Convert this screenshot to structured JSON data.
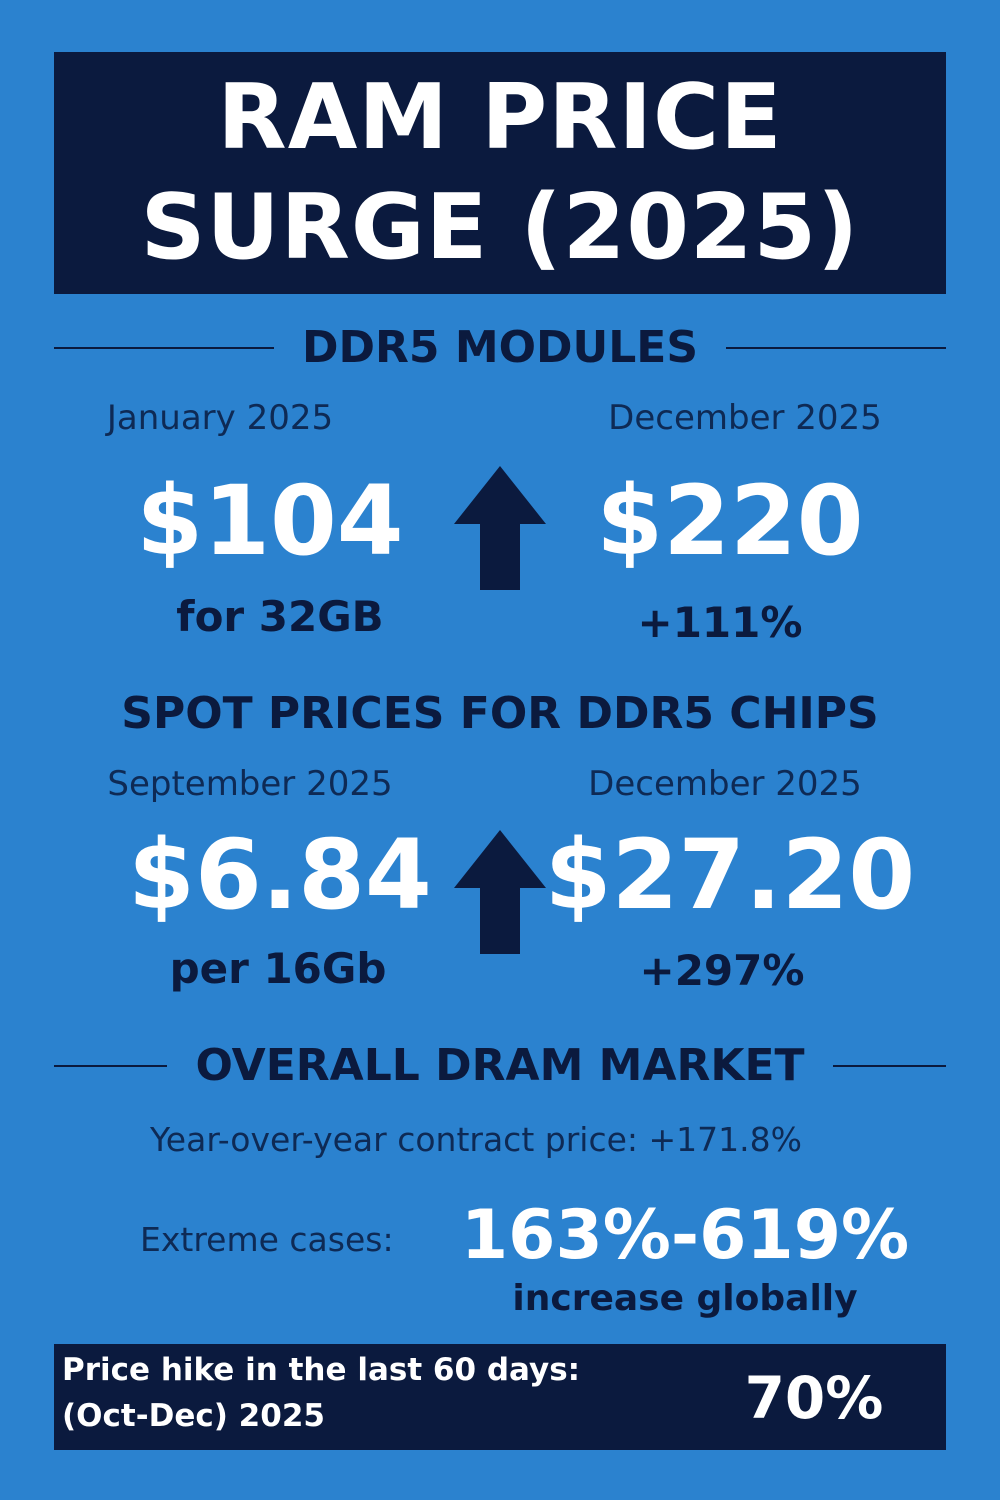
{
  "title": {
    "line1": "RAM PRICE",
    "line2": "SURGE (2025)"
  },
  "ddr5_modules": {
    "heading": "DDR5 MODULES",
    "from_period": "January 2025",
    "from_price": "$104",
    "from_note": "for 32GB",
    "to_period": "December 2025",
    "to_price": "$220",
    "to_change": "+111%"
  },
  "spot_prices": {
    "heading": "SPOT PRICES FOR DDR5 CHIPS",
    "from_period": "September 2025",
    "from_price": "$6.84",
    "from_note": "per 16Gb",
    "to_period": "December 2025",
    "to_price": "$27.20",
    "to_change": "+297%"
  },
  "overall_market": {
    "heading": "OVERALL DRAM MARKET",
    "yoy_text": "Year-over-year contract price: +171.8%",
    "extreme_label": "Extreme cases:",
    "extreme_value": "163%-619%",
    "extreme_sub": "increase globally"
  },
  "footer": {
    "line1": "Price hike in the last 60 days:",
    "line2": "(Oct-Dec) 2025",
    "value": "70%"
  },
  "colors": {
    "background": "#2b82cf",
    "navy": "#0b1a3e",
    "white": "#ffffff"
  },
  "icons": [
    "up-arrow-icon"
  ]
}
